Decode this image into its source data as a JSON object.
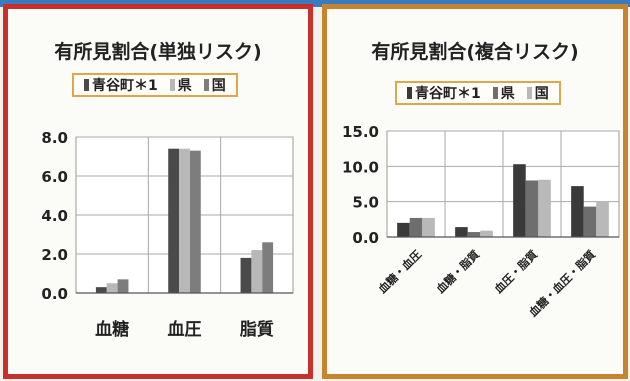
{
  "chart_data": [
    {
      "type": "bar",
      "title": "有所見割合(単独リスク)",
      "categories": [
        "血糖",
        "血圧",
        "脂質"
      ],
      "series": [
        {
          "name": "青谷町＊1",
          "color": "#4a4a4a",
          "values": [
            0.3,
            7.4,
            1.8
          ]
        },
        {
          "name": "県",
          "color": "#b8b8b8",
          "values": [
            0.5,
            7.4,
            2.2
          ]
        },
        {
          "name": "国",
          "color": "#7d7d7d",
          "values": [
            0.7,
            7.3,
            2.6
          ]
        }
      ],
      "ylim": [
        0,
        8
      ],
      "yticks": [
        "0.0",
        "2.0",
        "4.0",
        "6.0",
        "8.0"
      ],
      "grid": true,
      "legend_position": "top"
    },
    {
      "type": "bar",
      "title": "有所見割合(複合リスク)",
      "categories": [
        "血糖・血圧",
        "血糖・脂質",
        "血圧・脂質",
        "血糖・血圧・脂質"
      ],
      "series": [
        {
          "name": "青谷町＊1",
          "color": "#3a3a3a",
          "values": [
            2.0,
            1.4,
            10.3,
            7.2
          ]
        },
        {
          "name": "県",
          "color": "#6e6e6e",
          "values": [
            2.7,
            0.7,
            8.0,
            4.3
          ]
        },
        {
          "name": "国",
          "color": "#b9b9b9",
          "values": [
            2.7,
            0.9,
            8.1,
            5.1
          ]
        }
      ],
      "ylim": [
        0,
        15
      ],
      "yticks": [
        "0.0",
        "5.0",
        "10.0",
        "15.0"
      ],
      "grid": true,
      "legend_position": "top"
    }
  ]
}
